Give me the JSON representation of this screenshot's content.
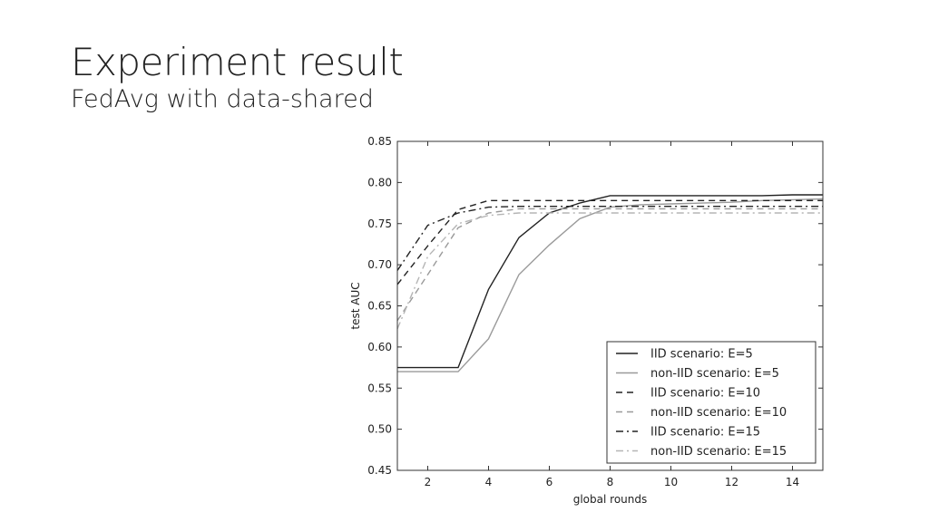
{
  "slide": {
    "title": "Experiment result",
    "subtitle": "FedAvg with data-shared"
  },
  "chart_data": {
    "type": "line",
    "title": "",
    "xlabel": "global rounds",
    "ylabel": "test AUC",
    "xlim": [
      1,
      15
    ],
    "ylim": [
      0.45,
      0.85
    ],
    "xticks": [
      2,
      4,
      6,
      8,
      10,
      12,
      14
    ],
    "yticks": [
      0.45,
      0.5,
      0.55,
      0.6,
      0.65,
      0.7,
      0.75,
      0.8,
      0.85
    ],
    "grid": false,
    "legend_position": "lower-right",
    "x": [
      1,
      2,
      3,
      4,
      5,
      6,
      7,
      8,
      9,
      10,
      11,
      12,
      13,
      14,
      15
    ],
    "series": [
      {
        "name": "IID scenario: E=5",
        "color": "#222222",
        "dash": "solid",
        "values": [
          0.575,
          0.575,
          0.575,
          0.67,
          0.733,
          0.763,
          0.775,
          0.784,
          0.784,
          0.784,
          0.784,
          0.784,
          0.784,
          0.785,
          0.785
        ]
      },
      {
        "name": "non-IID scenario: E=5",
        "color": "#9a9a9a",
        "dash": "solid",
        "values": [
          0.57,
          0.57,
          0.57,
          0.61,
          0.688,
          0.724,
          0.756,
          0.77,
          0.773,
          0.774,
          0.775,
          0.776,
          0.778,
          0.779,
          0.78
        ]
      },
      {
        "name": "IID scenario: E=10",
        "color": "#222222",
        "dash": "dashed",
        "values": [
          0.676,
          0.723,
          0.767,
          0.778,
          0.778,
          0.778,
          0.778,
          0.778,
          0.778,
          0.778,
          0.778,
          0.778,
          0.778,
          0.778,
          0.778
        ]
      },
      {
        "name": "non-IID scenario: E=10",
        "color": "#9a9a9a",
        "dash": "dashed",
        "values": [
          0.632,
          0.688,
          0.745,
          0.763,
          0.768,
          0.768,
          0.768,
          0.768,
          0.768,
          0.768,
          0.768,
          0.768,
          0.768,
          0.768,
          0.768
        ]
      },
      {
        "name": "IID scenario: E=15",
        "color": "#222222",
        "dash": "dashdot",
        "values": [
          0.693,
          0.748,
          0.763,
          0.77,
          0.771,
          0.771,
          0.771,
          0.771,
          0.771,
          0.771,
          0.771,
          0.771,
          0.771,
          0.771,
          0.771
        ]
      },
      {
        "name": "non-IID scenario: E=15",
        "color": "#b5b5b5",
        "dash": "dashdot",
        "values": [
          0.622,
          0.71,
          0.75,
          0.76,
          0.763,
          0.763,
          0.763,
          0.763,
          0.763,
          0.763,
          0.763,
          0.763,
          0.763,
          0.763,
          0.763
        ]
      }
    ]
  }
}
